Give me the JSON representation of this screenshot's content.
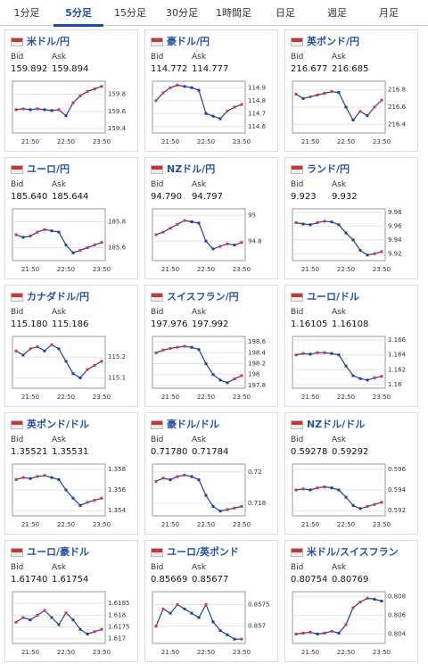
{
  "tabs": [
    "1分足",
    "5分足",
    "15分足",
    "30分足",
    "1時間足",
    "日足",
    "週足",
    "月足"
  ],
  "active_tab": 1,
  "chart_data": [
    {
      "type": "line",
      "title": "米ドル/円",
      "bid_label": "Bid",
      "ask_label": "Ask",
      "bid": "159.892",
      "ask": "159.894",
      "categories": [
        null,
        null,
        "21:50",
        null,
        null,
        null,
        null,
        "22:50",
        null,
        null,
        null,
        null,
        "23:50"
      ],
      "values": [
        159.62,
        159.63,
        159.62,
        159.63,
        159.62,
        159.61,
        159.62,
        159.55,
        159.7,
        159.78,
        159.83,
        159.86,
        159.89
      ],
      "ylim": [
        159.35,
        159.95
      ],
      "yticks": [
        159.4,
        159.6,
        159.8
      ]
    },
    {
      "type": "line",
      "title": "豪ドル/円",
      "bid_label": "Bid",
      "ask_label": "Ask",
      "bid": "114.772",
      "ask": "114.777",
      "categories": [
        null,
        null,
        "21:50",
        null,
        null,
        null,
        null,
        "22:50",
        null,
        null,
        null,
        null,
        "23:50"
      ],
      "values": [
        114.8,
        114.86,
        114.9,
        114.92,
        114.91,
        114.9,
        114.88,
        114.7,
        114.68,
        114.66,
        114.72,
        114.75,
        114.77
      ],
      "ylim": [
        114.55,
        114.95
      ],
      "yticks": [
        114.6,
        114.7,
        114.8,
        114.9
      ]
    },
    {
      "type": "line",
      "title": "英ポンド/円",
      "bid_label": "Bid",
      "ask_label": "Ask",
      "bid": "216.677",
      "ask": "216.685",
      "categories": [
        null,
        null,
        "21:50",
        null,
        null,
        null,
        null,
        "22:50",
        null,
        null,
        null,
        null,
        "23:50"
      ],
      "values": [
        216.75,
        216.7,
        216.72,
        216.74,
        216.76,
        216.78,
        216.77,
        216.6,
        216.45,
        216.55,
        216.5,
        216.6,
        216.68
      ],
      "ylim": [
        216.3,
        216.9
      ],
      "yticks": [
        216.4,
        216.6,
        216.8
      ]
    },
    {
      "type": "line",
      "title": "ユーロ/円",
      "bid_label": "Bid",
      "ask_label": "Ask",
      "bid": "185.640",
      "ask": "185.644",
      "categories": [
        null,
        null,
        "21:50",
        null,
        null,
        null,
        null,
        "22:50",
        null,
        null,
        null,
        null,
        "23:50"
      ],
      "values": [
        185.7,
        185.68,
        185.69,
        185.72,
        185.74,
        185.73,
        185.72,
        185.62,
        185.56,
        185.58,
        185.6,
        185.62,
        185.64
      ],
      "ylim": [
        185.5,
        185.9
      ],
      "yticks": [
        185.6,
        185.8
      ]
    },
    {
      "type": "line",
      "title": "NZドル/円",
      "bid_label": "Bid",
      "ask_label": "Ask",
      "bid": "94.790",
      "ask": "94.797",
      "categories": [
        null,
        null,
        "21:50",
        null,
        null,
        null,
        null,
        "22:50",
        null,
        null,
        null,
        null,
        "23:50"
      ],
      "values": [
        94.85,
        94.87,
        94.9,
        94.93,
        94.96,
        94.95,
        94.94,
        94.8,
        94.74,
        94.76,
        94.78,
        94.77,
        94.79
      ],
      "ylim": [
        94.65,
        95.05
      ],
      "yticks": [
        94.8,
        95
      ]
    },
    {
      "type": "line",
      "title": "ランド/円",
      "bid_label": "Bid",
      "ask_label": "Ask",
      "bid": "9.923",
      "ask": "9.932",
      "categories": [
        null,
        null,
        "21:50",
        null,
        null,
        null,
        null,
        "22:50",
        null,
        null,
        null,
        null,
        "23:50"
      ],
      "values": [
        9.965,
        9.963,
        9.962,
        9.965,
        9.967,
        9.966,
        9.962,
        9.95,
        9.94,
        9.925,
        9.918,
        9.92,
        9.923
      ],
      "ylim": [
        9.91,
        9.985
      ],
      "yticks": [
        9.92,
        9.94,
        9.96,
        9.98
      ]
    },
    {
      "type": "line",
      "title": "カナダドル/円",
      "bid_label": "Bid",
      "ask_label": "Ask",
      "bid": "115.180",
      "ask": "115.186",
      "categories": [
        null,
        null,
        "21:50",
        null,
        null,
        null,
        null,
        "22:50",
        null,
        null,
        null,
        null,
        "23:50"
      ],
      "values": [
        115.23,
        115.21,
        115.24,
        115.25,
        115.23,
        115.26,
        115.24,
        115.18,
        115.12,
        115.1,
        115.14,
        115.16,
        115.18
      ],
      "ylim": [
        115.05,
        115.3
      ],
      "yticks": [
        115.1,
        115.2
      ]
    },
    {
      "type": "line",
      "title": "スイスフラン/円",
      "bid_label": "Bid",
      "ask_label": "Ask",
      "bid": "197.976",
      "ask": "197.992",
      "categories": [
        null,
        null,
        "21:50",
        null,
        null,
        null,
        null,
        "22:50",
        null,
        null,
        null,
        null,
        "23:50"
      ],
      "values": [
        198.4,
        198.45,
        198.48,
        198.5,
        198.52,
        198.5,
        198.46,
        198.2,
        198.0,
        197.9,
        197.85,
        197.92,
        197.98
      ],
      "ylim": [
        197.75,
        198.7
      ],
      "yticks": [
        197.8,
        198,
        198.2,
        198.4,
        198.6
      ]
    },
    {
      "type": "line",
      "title": "ユーロ/ドル",
      "bid_label": "Bid",
      "ask_label": "Ask",
      "bid": "1.16105",
      "ask": "1.16108",
      "categories": [
        null,
        null,
        "21:50",
        null,
        null,
        null,
        null,
        "22:50",
        null,
        null,
        null,
        null,
        "23:50"
      ],
      "values": [
        1.164,
        1.1642,
        1.1641,
        1.1643,
        1.1643,
        1.1642,
        1.164,
        1.1625,
        1.1612,
        1.1608,
        1.1606,
        1.1609,
        1.1611
      ],
      "ylim": [
        1.1595,
        1.1665
      ],
      "yticks": [
        1.16,
        1.162,
        1.164,
        1.166
      ]
    },
    {
      "type": "line",
      "title": "英ポンド/ドル",
      "bid_label": "Bid",
      "ask_label": "Ask",
      "bid": "1.35521",
      "ask": "1.35531",
      "categories": [
        null,
        null,
        "21:50",
        null,
        null,
        null,
        null,
        "22:50",
        null,
        null,
        null,
        null,
        "23:50"
      ],
      "values": [
        1.357,
        1.3572,
        1.3571,
        1.3573,
        1.3574,
        1.3572,
        1.357,
        1.356,
        1.3552,
        1.3545,
        1.3548,
        1.355,
        1.3552
      ],
      "ylim": [
        1.3535,
        1.3585
      ],
      "yticks": [
        1.354,
        1.356,
        1.358
      ]
    },
    {
      "type": "line",
      "title": "豪ドル/ドル",
      "bid_label": "Bid",
      "ask_label": "Ask",
      "bid": "0.71780",
      "ask": "0.71784",
      "categories": [
        null,
        null,
        "21:50",
        null,
        null,
        null,
        null,
        "22:50",
        null,
        null,
        null,
        null,
        "23:50"
      ],
      "values": [
        0.7194,
        0.7196,
        0.7195,
        0.7197,
        0.7198,
        0.7197,
        0.7195,
        0.7185,
        0.7178,
        0.7175,
        0.7176,
        0.7177,
        0.7178
      ],
      "ylim": [
        0.7172,
        0.7205
      ],
      "yticks": [
        0.718,
        0.72
      ]
    },
    {
      "type": "line",
      "title": "NZドル/ドル",
      "bid_label": "Bid",
      "ask_label": "Ask",
      "bid": "0.59278",
      "ask": "0.59292",
      "categories": [
        null,
        null,
        "21:50",
        null,
        null,
        null,
        null,
        "22:50",
        null,
        null,
        null,
        null,
        "23:50"
      ],
      "values": [
        0.594,
        0.5941,
        0.594,
        0.5942,
        0.5943,
        0.5942,
        0.594,
        0.5933,
        0.5925,
        0.5922,
        0.5924,
        0.5926,
        0.5928
      ],
      "ylim": [
        0.5915,
        0.5965
      ],
      "yticks": [
        0.592,
        0.594,
        0.596
      ]
    },
    {
      "type": "line",
      "title": "ユーロ/豪ドル",
      "bid_label": "Bid",
      "ask_label": "Ask",
      "bid": "1.61740",
      "ask": "1.61754",
      "categories": [
        null,
        null,
        "21:50",
        null,
        null,
        null,
        null,
        "22:50",
        null,
        null,
        null,
        null,
        "23:50"
      ],
      "values": [
        1.6177,
        1.6179,
        1.6178,
        1.618,
        1.6182,
        1.6179,
        1.6176,
        1.6181,
        1.6178,
        1.6174,
        1.6172,
        1.6173,
        1.6174
      ],
      "ylim": [
        1.6168,
        1.619
      ],
      "yticks": [
        1.617,
        1.6175,
        1.618,
        1.6185
      ]
    },
    {
      "type": "line",
      "title": "ユーロ/英ポンド",
      "bid_label": "Bid",
      "ask_label": "Ask",
      "bid": "0.85669",
      "ask": "0.85677",
      "categories": [
        null,
        null,
        "21:50",
        null,
        null,
        null,
        null,
        "22:50",
        null,
        null,
        null,
        null,
        "23:50"
      ],
      "values": [
        0.857,
        0.8574,
        0.8573,
        0.8575,
        0.8574,
        0.8573,
        0.8572,
        0.8575,
        0.8571,
        0.8569,
        0.8568,
        0.8567,
        0.8567
      ],
      "ylim": [
        0.8566,
        0.8578
      ],
      "yticks": [
        0.857,
        0.8575
      ]
    },
    {
      "type": "line",
      "title": "米ドル/スイスフラン",
      "bid_label": "Bid",
      "ask_label": "Ask",
      "bid": "0.80754",
      "ask": "0.80769",
      "categories": [
        null,
        null,
        "21:50",
        null,
        null,
        null,
        null,
        "22:50",
        null,
        null,
        null,
        null,
        "23:50"
      ],
      "values": [
        0.804,
        0.8041,
        0.8042,
        0.804,
        0.8041,
        0.8043,
        0.8041,
        0.805,
        0.8068,
        0.8074,
        0.8078,
        0.8077,
        0.8075
      ],
      "ylim": [
        0.803,
        0.8085
      ],
      "yticks": [
        0.804,
        0.806,
        0.808
      ]
    }
  ]
}
